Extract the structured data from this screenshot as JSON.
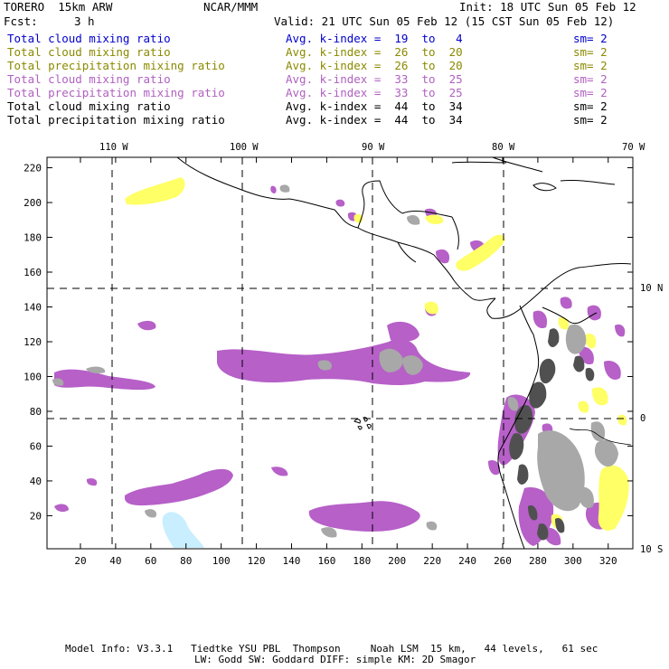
{
  "header": {
    "model": "TORERO  15km ARW",
    "center": "NCAR/MMM",
    "init": "Init: 18 UTC Sun 05 Feb 12",
    "fcst_label": "Fcst:",
    "fcst_value": "3 h",
    "valid": "Valid: 21 UTC Sun 05 Feb 12 (15 CST Sun 05 Feb 12)"
  },
  "legend": [
    {
      "field": "Total cloud mixing ratio",
      "kindex": "Avg. k-index =  19  to   4",
      "sm": "sm= 2",
      "color": "#0000cc"
    },
    {
      "field": "Total cloud mixing ratio",
      "kindex": "Avg. k-index =  26  to  20",
      "sm": "sm= 2",
      "color": "#8a8a00"
    },
    {
      "field": "Total precipitation mixing ratio",
      "kindex": "Avg. k-index =  26  to  20",
      "sm": "sm= 2",
      "color": "#8a8a00"
    },
    {
      "field": "Total cloud mixing ratio",
      "kindex": "Avg. k-index =  33  to  25",
      "sm": "sm= 2",
      "color": "#b060c0"
    },
    {
      "field": "Total precipitation mixing ratio",
      "kindex": "Avg. k-index =  33  to  25",
      "sm": "sm= 2",
      "color": "#b060c0"
    },
    {
      "field": "Total cloud mixing ratio",
      "kindex": "Avg. k-index =  44  to  34",
      "sm": "sm= 2",
      "color": "#000000"
    },
    {
      "field": "Total precipitation mixing ratio",
      "kindex": "Avg. k-index =  44  to  34",
      "sm": "sm= 2",
      "color": "#000000"
    }
  ],
  "axes": {
    "longitude_labels": [
      "110 W",
      "100 W",
      "90 W",
      "80 W",
      "70 W"
    ],
    "latitude_labels": [
      "10 N",
      "0",
      "10 S"
    ],
    "x_ticks": [
      20,
      40,
      60,
      80,
      100,
      120,
      140,
      160,
      180,
      200,
      220,
      240,
      260,
      280,
      300,
      320
    ],
    "y_ticks": [
      20,
      40,
      60,
      80,
      100,
      120,
      140,
      160,
      180,
      200,
      220
    ],
    "x_range": [
      1,
      334
    ],
    "y_range": [
      1,
      226
    ]
  },
  "footer": {
    "line1": "Model Info: V3.3.1   Tiedtke YSU PBL  Thompson     Noah LSM  15 km,   44 levels,   61 sec",
    "line2": "LW: Godd SW: Goddard DIFF: simple KM: 2D Smagor"
  },
  "colors": {
    "purple": "#b660c8",
    "yellow": "#ffff66",
    "gray": "#a8a8a8",
    "dark_gray": "#505050",
    "light_blue": "#c8eeff"
  }
}
